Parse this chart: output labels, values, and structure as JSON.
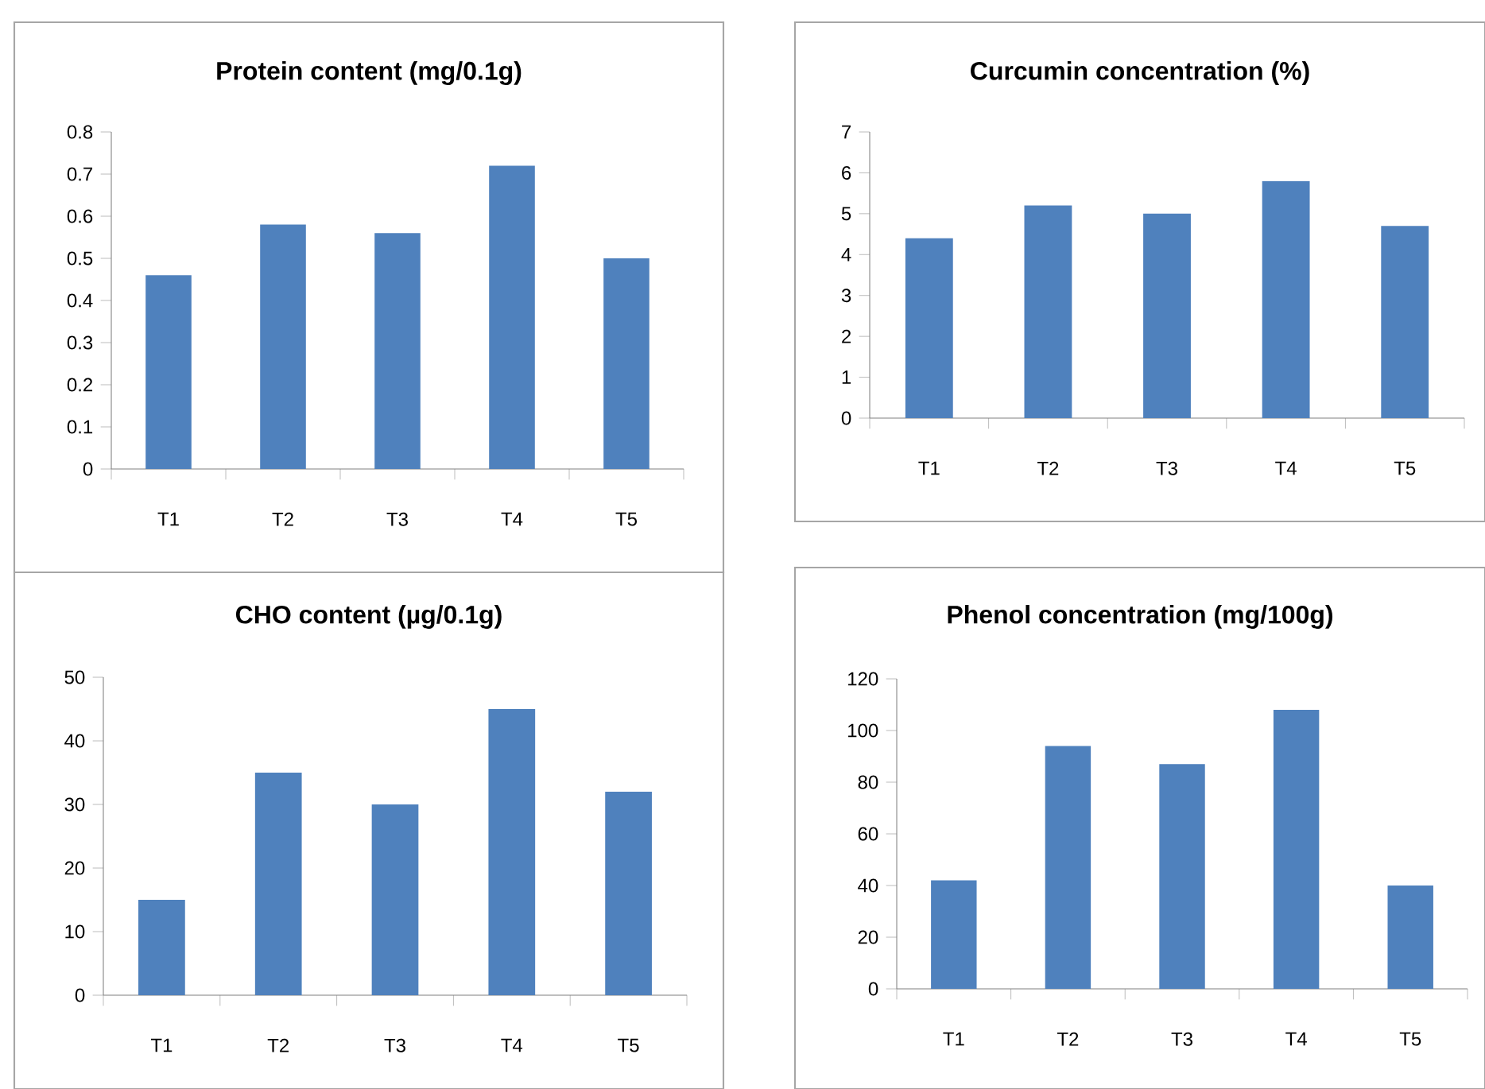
{
  "chart_data": [
    {
      "type": "bar",
      "title": "Protein  content (mg/0.1g)",
      "categories": [
        "T1",
        "T2",
        "T3",
        "T4",
        "T5"
      ],
      "values": [
        0.46,
        0.58,
        0.56,
        0.72,
        0.5
      ],
      "color": "#4f81bd",
      "ylim": [
        0,
        0.8
      ],
      "yticks": [
        0,
        0.1,
        0.2,
        0.3,
        0.4,
        0.5,
        0.6,
        0.7,
        0.8
      ]
    },
    {
      "type": "bar",
      "title": "Curcumin concentration (%)",
      "categories": [
        "T1",
        "T2",
        "T3",
        "T4",
        "T5"
      ],
      "values": [
        4.4,
        5.2,
        5.0,
        5.8,
        4.7
      ],
      "color": "#4f81bd",
      "ylim": [
        0,
        7
      ],
      "yticks": [
        0,
        1,
        2,
        3,
        4,
        5,
        6,
        7
      ]
    },
    {
      "type": "bar",
      "title": "CHO content (µg/0.1g)",
      "categories": [
        "T1",
        "T2",
        "T3",
        "T4",
        "T5"
      ],
      "values": [
        15,
        35,
        30,
        45,
        32
      ],
      "color": "#4f81bd",
      "ylim": [
        0,
        50
      ],
      "yticks": [
        0,
        10,
        20,
        30,
        40,
        50
      ]
    },
    {
      "type": "bar",
      "title": "Phenol concentration (mg/100g)",
      "categories": [
        "T1",
        "T2",
        "T3",
        "T4",
        "T5"
      ],
      "values": [
        42,
        94,
        87,
        108,
        40
      ],
      "color": "#4f81bd",
      "ylim": [
        0,
        120
      ],
      "yticks": [
        0,
        20,
        40,
        60,
        80,
        100,
        120
      ]
    }
  ]
}
